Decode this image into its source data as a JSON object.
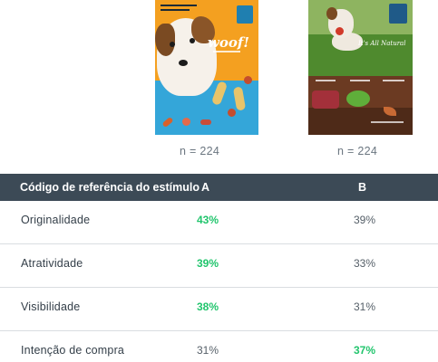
{
  "stimuli": [
    {
      "id": "A",
      "n_label": "n = 224",
      "text": "woof!"
    },
    {
      "id": "B",
      "n_label": "n = 224",
      "text": "It's All Natural"
    }
  ],
  "table": {
    "header": {
      "label": "Código de referência do estímulo",
      "col_a": "A",
      "col_b": "B"
    },
    "rows": [
      {
        "label": "Originalidade",
        "a": "43%",
        "b": "39%",
        "winner": "a"
      },
      {
        "label": "Atratividade",
        "a": "39%",
        "b": "33%",
        "winner": "a"
      },
      {
        "label": "Visibilidade",
        "a": "38%",
        "b": "31%",
        "winner": "a"
      },
      {
        "label": "Intenção de compra",
        "a": "31%",
        "b": "37%",
        "winner": "b"
      }
    ]
  },
  "colors": {
    "header_bg": "#3c4a56",
    "highlight": "#22c56d",
    "text": "#333e48",
    "divider": "#d9dde1"
  }
}
